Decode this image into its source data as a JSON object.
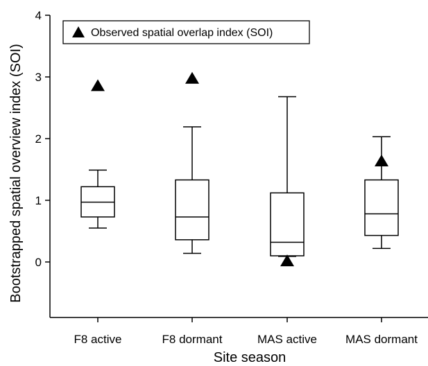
{
  "chart_data": {
    "type": "box",
    "xlabel": "Site season",
    "ylabel": "Bootstrapped spatial overview index (SOI)",
    "ylim": [
      -0.9,
      4
    ],
    "yticks": [
      0,
      1,
      2,
      3,
      4
    ],
    "categories": [
      "F8 active",
      "F8 dormant",
      "MAS active",
      "MAS dormant"
    ],
    "boxes": [
      {
        "whisker_low": 0.55,
        "q1": 0.73,
        "median": 0.97,
        "q3": 1.22,
        "whisker_high": 1.49
      },
      {
        "whisker_low": 0.14,
        "q1": 0.36,
        "median": 0.73,
        "q3": 1.33,
        "whisker_high": 2.19
      },
      {
        "whisker_low": 0.09,
        "q1": 0.1,
        "median": 0.32,
        "q3": 1.12,
        "whisker_high": 2.68
      },
      {
        "whisker_low": 0.22,
        "q1": 0.43,
        "median": 0.78,
        "q3": 1.33,
        "whisker_high": 2.03
      }
    ],
    "observed_soi": [
      2.86,
      2.98,
      0.02,
      1.64
    ],
    "legend": {
      "label": "Observed spatial overlap index (SOI)",
      "marker": "filled-triangle",
      "position": "top-left"
    },
    "grid": false,
    "colors": {
      "box_fill": "#ffffff",
      "line": "#000000",
      "marker": "#000000"
    }
  }
}
